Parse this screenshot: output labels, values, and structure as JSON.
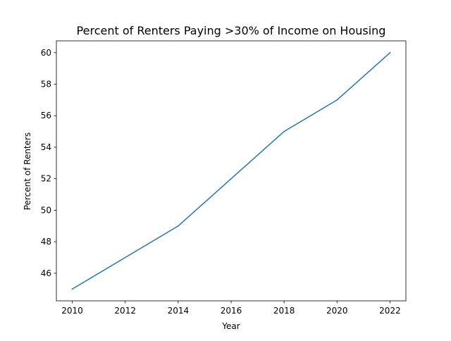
{
  "chart_data": {
    "type": "line",
    "title": "Percent of Renters Paying >30% of Income on Housing",
    "xlabel": "Year",
    "ylabel": "Percent of Renters",
    "x": [
      2010,
      2012,
      2014,
      2016,
      2018,
      2020,
      2022
    ],
    "series": [
      {
        "values": [
          45,
          47,
          49,
          52,
          55,
          57,
          60
        ],
        "color": "#1f77b4"
      }
    ],
    "xlim": [
      2009.4,
      2022.6
    ],
    "ylim": [
      44.25,
      60.75
    ],
    "x_ticks": [
      "2010",
      "2012",
      "2014",
      "2016",
      "2018",
      "2020",
      "2022"
    ],
    "y_ticks": [
      "46",
      "48",
      "50",
      "52",
      "54",
      "56",
      "58",
      "60"
    ],
    "grid": false,
    "legend": false
  }
}
